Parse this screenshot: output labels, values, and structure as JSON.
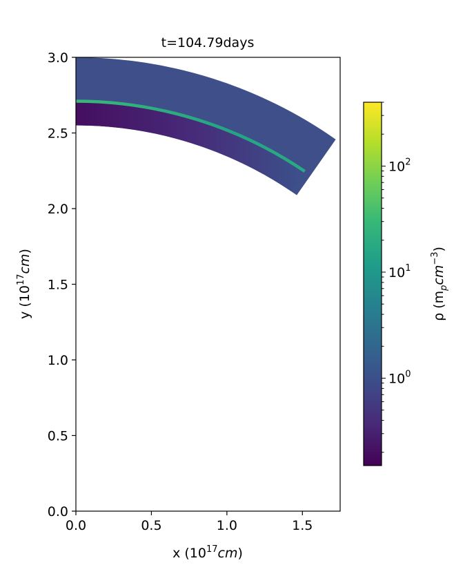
{
  "chart_data": {
    "type": "heatmap",
    "title": "t=104.79days",
    "xlabel": {
      "prefix": "x (10",
      "exp": "17",
      "unit": "cm",
      "suffix": ")"
    },
    "ylabel": {
      "prefix": "y (10",
      "exp": "17",
      "unit": "cm",
      "suffix": ")"
    },
    "xlim": [
      0,
      1.75
    ],
    "ylim": [
      0,
      3.0
    ],
    "xticks": [
      0.0,
      0.5,
      1.0,
      1.5
    ],
    "xtick_labels": [
      "0.0",
      "0.5",
      "1.0",
      "1.5"
    ],
    "yticks": [
      0.0,
      0.5,
      1.0,
      1.5,
      2.0,
      2.5,
      3.0
    ],
    "ytick_labels": [
      "0.0",
      "0.5",
      "1.0",
      "1.5",
      "2.0",
      "2.5",
      "3.0"
    ],
    "grid": false,
    "regions": {
      "outer_shell": {
        "r_inner": 2.55,
        "r_outer": 3.0,
        "theta_min_deg": 55.0,
        "theta_max_deg": 90.0,
        "density": 1.0,
        "color": "#3e4f8a"
      },
      "low_density_cavity": {
        "r_inner": 2.55,
        "r_outer": 2.71,
        "theta_min_deg": 56.0,
        "theta_max_deg": 90.0,
        "density": 0.4
      },
      "dense_shock_front": {
        "r": 2.71,
        "theta_min_deg": 56.0,
        "theta_max_deg": 90.0,
        "density": 30.0
      }
    },
    "colorbar": {
      "label": {
        "prefix": "ρ (m",
        "sub": "p",
        "mid": "cm",
        "exp": "−3",
        "suffix": ")"
      },
      "scale": "log",
      "range": [
        0.15,
        400
      ],
      "colormap": "viridis",
      "ticks": [
        {
          "base": "10",
          "exp": "0",
          "value": 1
        },
        {
          "base": "10",
          "exp": "1",
          "value": 10
        },
        {
          "base": "10",
          "exp": "2",
          "value": 100
        }
      ],
      "stops": [
        "#440154",
        "#482878",
        "#3e4a89",
        "#31688e",
        "#26828e",
        "#1f9e89",
        "#35b779",
        "#6ece58",
        "#b5de2b",
        "#fde725"
      ]
    }
  }
}
